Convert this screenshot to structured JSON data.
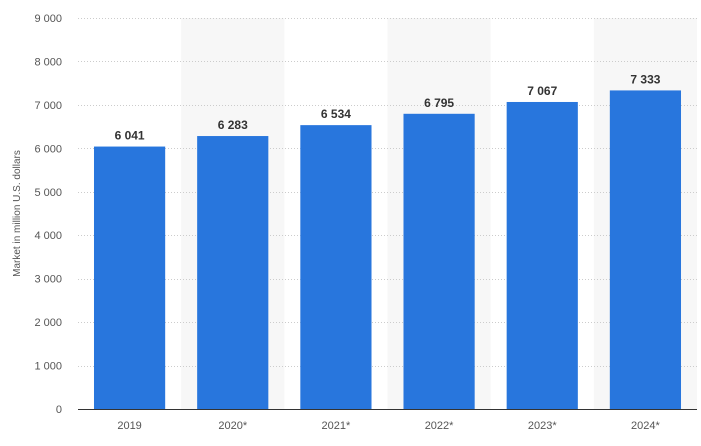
{
  "chart_data": {
    "type": "bar",
    "categories": [
      "2019",
      "2020*",
      "2021*",
      "2022*",
      "2023*",
      "2024*"
    ],
    "values": [
      6041,
      6283,
      6534,
      6795,
      7067,
      7333
    ],
    "data_labels": [
      "6 041",
      "6 283",
      "6 534",
      "6 795",
      "7 067",
      "7 333"
    ],
    "title": "",
    "xlabel": "",
    "ylabel": "Market in million U.S. dollars",
    "ylim": [
      0,
      9000
    ],
    "yticks": [
      0,
      1000,
      2000,
      3000,
      4000,
      5000,
      6000,
      7000,
      8000,
      9000
    ],
    "ytick_labels": [
      "0",
      "1 000",
      "2 000",
      "3 000",
      "4 000",
      "5 000",
      "6 000",
      "7 000",
      "8 000",
      "9 000"
    ],
    "grid": true,
    "legend": "none",
    "colors": {
      "bar": "#2876dd",
      "alt_band": "#f7f7f7",
      "grid": "#cccccc",
      "axis": "#333333"
    }
  }
}
